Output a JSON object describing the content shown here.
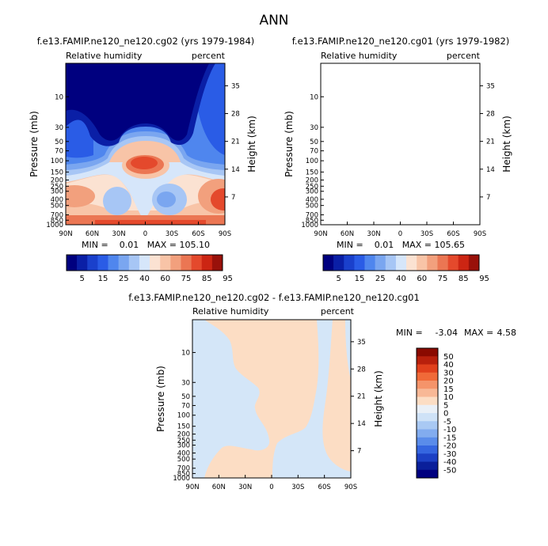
{
  "page_title": "ANN",
  "chart_data": [
    {
      "type": "contour",
      "title": "f.e13.FAMIP.ne120_ne120.cg02 (yrs 1979-1984)",
      "left_label": "Relative humidity",
      "right_label": "percent",
      "ylabel": "Pressure (mb)",
      "ylabel_right": "Height (km)",
      "x_ticks": [
        "90N",
        "60N",
        "30N",
        "0",
        "30S",
        "60S",
        "90S"
      ],
      "y_ticks": [
        "10",
        "30",
        "50",
        "70",
        "100",
        "150",
        "200",
        "250",
        "300",
        "400",
        "500",
        "700",
        "850",
        "1000"
      ],
      "y_right_ticks": [
        "35",
        "28",
        "21",
        "14",
        "7"
      ],
      "xlim": [
        90,
        -90
      ],
      "ylim_mb": [
        1000,
        3
      ],
      "min_max_text": "MIN =    0.01   MAX = 105.10",
      "min": 0.01,
      "max": 105.1,
      "colorbar_labels": [
        "5",
        "15",
        "25",
        "40",
        "60",
        "75",
        "85",
        "95"
      ]
    },
    {
      "type": "contour",
      "title": "f.e13.FAMIP.ne120_ne120.cg01 (yrs 1979-1982)",
      "left_label": "Relative humidity",
      "right_label": "percent",
      "ylabel": "Pressure (mb)",
      "ylabel_right": "Height (km)",
      "x_ticks": [
        "90N",
        "60N",
        "30N",
        "0",
        "30S",
        "60S",
        "90S"
      ],
      "y_ticks": [
        "10",
        "30",
        "50",
        "70",
        "100",
        "150",
        "200",
        "250",
        "300",
        "400",
        "500",
        "700",
        "850",
        "1000"
      ],
      "y_right_ticks": [
        "35",
        "28",
        "21",
        "14",
        "7"
      ],
      "xlim": [
        90,
        -90
      ],
      "ylim_mb": [
        1000,
        3
      ],
      "min_max_text": "MIN =    0.01   MAX = 105.65",
      "min": 0.01,
      "max": 105.65,
      "colorbar_labels": [
        "5",
        "15",
        "25",
        "40",
        "60",
        "75",
        "85",
        "95"
      ]
    },
    {
      "type": "contour",
      "title": "f.e13.FAMIP.ne120_ne120.cg02 - f.e13.FAMIP.ne120_ne120.cg01",
      "left_label": "Relative humidity",
      "right_label": "percent",
      "ylabel": "Pressure (mb)",
      "ylabel_right": "Height (km)",
      "x_ticks": [
        "90N",
        "60N",
        "30N",
        "0",
        "30S",
        "60S",
        "90S"
      ],
      "y_ticks": [
        "10",
        "30",
        "50",
        "70",
        "100",
        "150",
        "200",
        "250",
        "300",
        "400",
        "500",
        "700",
        "850",
        "1000"
      ],
      "y_right_ticks": [
        "35",
        "28",
        "21",
        "14",
        "7"
      ],
      "xlim": [
        90,
        -90
      ],
      "ylim_mb": [
        1000,
        3
      ],
      "min_label": "MIN =",
      "min_value": "-3.04",
      "max_label": "MAX =",
      "max_value": "4.58",
      "min": -3.04,
      "max": 4.58,
      "colorbar_labels": [
        "50",
        "40",
        "30",
        "20",
        "15",
        "10",
        "5",
        "0",
        "-5",
        "-10",
        "-15",
        "-20",
        "-30",
        "-40",
        "-50"
      ]
    }
  ],
  "colors": {
    "cbar1": [
      "#00007f",
      "#0a1fa6",
      "#1a40cc",
      "#2a5ce6",
      "#4f86ee",
      "#7aa6f0",
      "#a7c6f5",
      "#d6e6fa",
      "#fbe2d2",
      "#f8c4a7",
      "#f2a07d",
      "#eb7653",
      "#e4492c",
      "#cc2513",
      "#99110a"
    ],
    "cbar3": [
      "#8a0a00",
      "#b8200c",
      "#e0401c",
      "#f06a38",
      "#f5946a",
      "#f8b896",
      "#fcddc4",
      "#eaf0f7",
      "#cfe2f7",
      "#a9c9f3",
      "#82acef",
      "#5a8cea",
      "#3566e0",
      "#1c40c4",
      "#0a1f9a",
      "#00007f"
    ]
  }
}
